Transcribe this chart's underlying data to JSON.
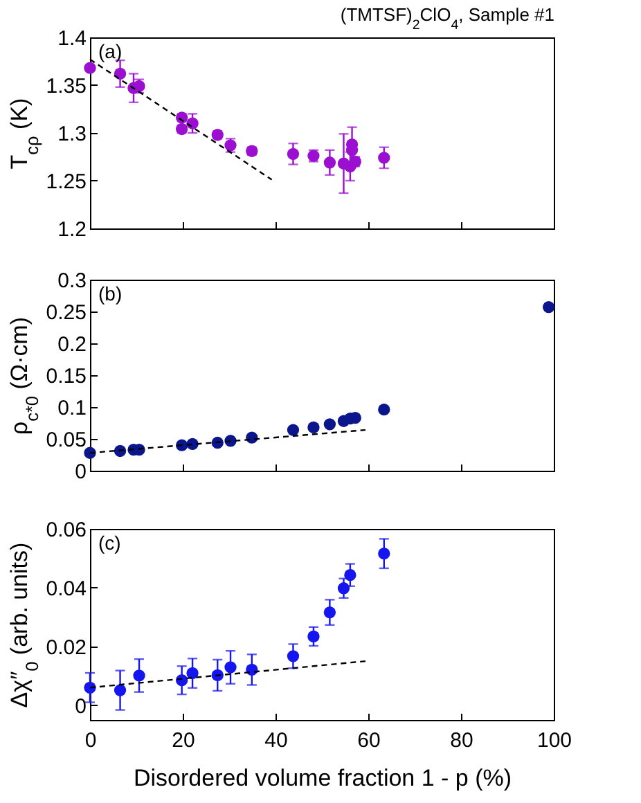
{
  "chart_data": [
    {
      "type": "scatter",
      "title": "(TMTSF)$_{2}$ClO$_{4}$, Sample #1",
      "ylabel": "T$_{cρ}$ (K)",
      "annotations": [
        "(a)"
      ],
      "tick_labels": "y",
      "xlim": [
        0,
        100
      ],
      "xticks": [
        0,
        20,
        40,
        60,
        80,
        100
      ],
      "ylim": [
        1.2,
        1.4
      ],
      "yticks": [
        1.2,
        1.25,
        1.3,
        1.35,
        1.4
      ],
      "series": [
        {
          "marker": "circle",
          "color": "#9a0fd0",
          "x": [
            0,
            6.5,
            9.4,
            10.6,
            19.8,
            19.8,
            22.1,
            27.5,
            30.3,
            34.9,
            43.8,
            48.2,
            51.7,
            54.7,
            56.1,
            56.5,
            56.5,
            57.2,
            63.4
          ],
          "values": [
            1.368,
            1.362,
            1.347,
            1.349,
            1.316,
            1.304,
            1.31,
            1.298,
            1.287,
            1.281,
            1.278,
            1.276,
            1.269,
            1.268,
            1.265,
            1.288,
            1.282,
            1.27,
            1.274
          ],
          "errors": [
            null,
            0.014,
            0.015,
            0.007,
            0.004,
            0.004,
            0.01,
            0.004,
            0.007,
            0.004,
            0.011,
            0.006,
            0.013,
            0.031,
            0.015,
            0.018,
            null,
            0.005,
            0.011
          ]
        },
        {
          "type": "line",
          "line_style": "dashed",
          "color": "#000000",
          "x": [
            0,
            39.2
          ],
          "values": [
            1.377,
            1.251
          ]
        }
      ]
    },
    {
      "type": "scatter",
      "ylabel": "ρ$_{c*0}$ (Ω·cm)",
      "annotations": [
        "(b)"
      ],
      "tick_labels": "y",
      "xlim": [
        0,
        100
      ],
      "xticks": [
        0,
        20,
        40,
        60,
        80,
        100
      ],
      "ylim": [
        0,
        0.3
      ],
      "yticks": [
        0,
        0.05,
        0.1,
        0.15,
        0.2,
        0.25,
        0.3
      ],
      "series": [
        {
          "marker": "circle",
          "color": "#0b168c",
          "x": [
            0,
            6.5,
            9.4,
            10.6,
            19.8,
            22.1,
            27.5,
            30.3,
            34.9,
            43.8,
            48.2,
            51.7,
            54.7,
            56.1,
            57.2,
            63.4,
            98.9
          ],
          "values": [
            0.028,
            0.031,
            0.033,
            0.033,
            0.04,
            0.042,
            0.044,
            0.047,
            0.052,
            0.064,
            0.068,
            0.073,
            0.078,
            0.082,
            0.083,
            0.096,
            0.257
          ]
        },
        {
          "type": "line",
          "line_style": "dashed",
          "color": "#000000",
          "x": [
            0,
            59.4
          ],
          "values": [
            0.028,
            0.064
          ]
        }
      ]
    },
    {
      "type": "scatter",
      "ylabel": "Δχ″$_{0}$ (arb. units)",
      "xlabel": "Disordered volume fraction 1 - p (%)",
      "annotations": [
        "(c)"
      ],
      "xlim": [
        0,
        100
      ],
      "xticks": [
        0,
        20,
        40,
        60,
        80,
        100
      ],
      "ylim": [
        -0.005,
        0.06
      ],
      "yticks": [
        0,
        0.02,
        0.04,
        0.06
      ],
      "series": [
        {
          "marker": "circle",
          "color": "#1515f0",
          "x": [
            0,
            6.5,
            10.6,
            19.8,
            22.1,
            27.5,
            30.3,
            34.9,
            43.8,
            48.2,
            51.7,
            54.7,
            56.1,
            63.4
          ],
          "values": [
            0.006,
            0.0051,
            0.0101,
            0.0085,
            0.0109,
            0.0102,
            0.0129,
            0.0121,
            0.0167,
            0.0234,
            0.0316,
            0.0398,
            0.0443,
            0.0516
          ],
          "errors": [
            0.005,
            0.0067,
            0.0056,
            0.0048,
            0.005,
            0.0053,
            0.0056,
            0.0052,
            0.0041,
            0.0032,
            0.0043,
            0.0033,
            0.0038,
            0.005
          ]
        },
        {
          "type": "line",
          "line_style": "dashed",
          "color": "#000000",
          "x": [
            0,
            59.4
          ],
          "values": [
            0.006,
            0.015
          ]
        }
      ]
    }
  ]
}
